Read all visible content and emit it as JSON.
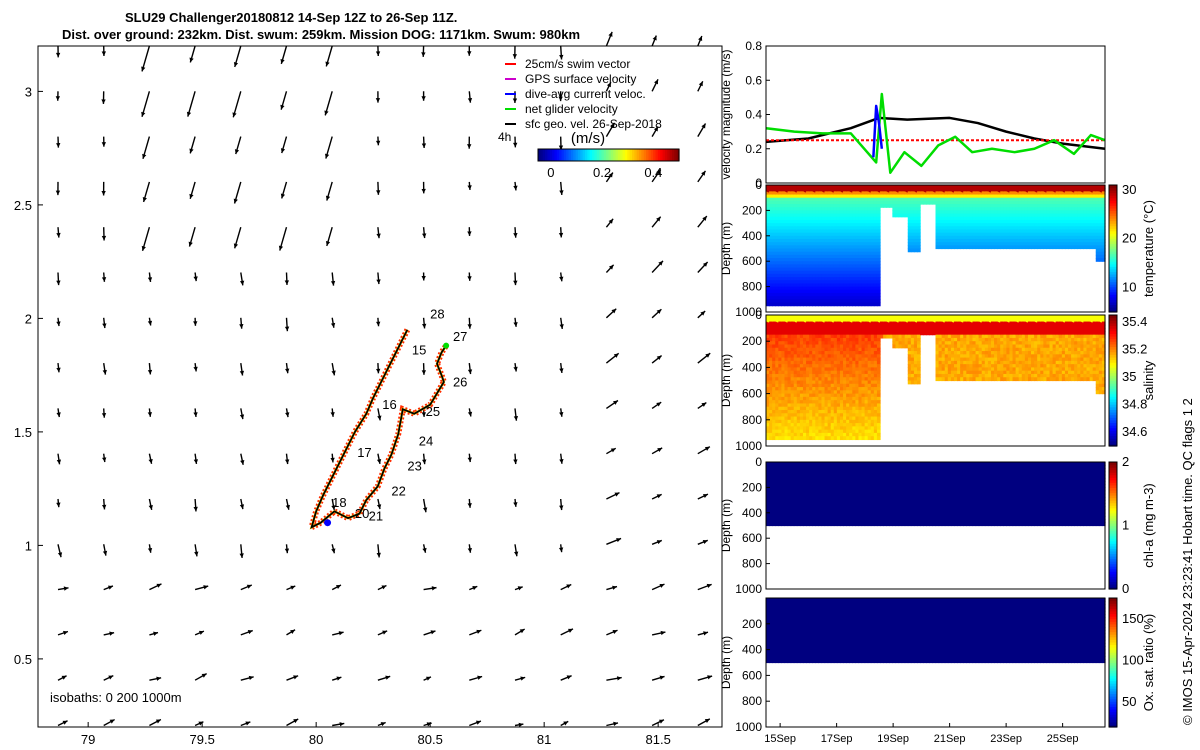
{
  "header": {
    "title_line1": "SLU29 Challenger20180812 14-Sep 12Z to 26-Sep 11Z.",
    "title_line2": "Dist. over ground: 232km. Dist. swum: 259km. Mission DOG: 1171km. Swum: 980km"
  },
  "footer_note": "© IMOS 15-Apr-2024 23:23:41 Hobart time. QC flags 1  2",
  "chart_data": [
    {
      "type": "scatter",
      "panel": "map",
      "title": "",
      "x_ticks": [
        "79",
        "79.5",
        "80",
        "80.5",
        "81",
        "81.5"
      ],
      "y_ticks": [
        "0.5",
        "1",
        "1.5",
        "2",
        "2.5",
        "3"
      ],
      "xlim": [
        78.78,
        81.78
      ],
      "ylim": [
        0.2,
        3.2
      ],
      "legend": {
        "placement": "top-right",
        "items": [
          {
            "label": "25cm/s swim vector",
            "color": "#ff0000"
          },
          {
            "label": "GPS surface velocity",
            "color": "#cc00cc"
          },
          {
            "label": "dive-avg current veloc.",
            "color": "#0000ff"
          },
          {
            "label": "net glider velocity",
            "color": "#00dd00"
          },
          {
            "label": "sfc geo. vel. 26-Sep-2018",
            "color": "#000000"
          }
        ]
      },
      "scale_arrow_label": "4h",
      "colorbar": {
        "label": "(m/s)",
        "ticks": [
          "0",
          "0.2",
          "0.4"
        ],
        "range": [
          -0.05,
          0.5
        ]
      },
      "isobaths_label": "isobaths: 0   200  1000m",
      "track": {
        "lon": [
          80.4,
          80.35,
          80.3,
          80.25,
          80.22,
          80.17,
          80.12,
          80.07,
          80.03,
          80.0,
          79.98,
          80.02,
          80.08,
          80.14,
          80.19,
          80.22,
          80.27,
          80.3,
          80.33,
          80.36,
          80.38,
          80.43,
          80.5,
          80.56,
          80.55,
          80.53,
          80.55,
          80.57
        ],
        "lat": [
          1.95,
          1.85,
          1.75,
          1.65,
          1.58,
          1.5,
          1.4,
          1.3,
          1.22,
          1.15,
          1.08,
          1.1,
          1.15,
          1.12,
          1.14,
          1.2,
          1.26,
          1.34,
          1.4,
          1.49,
          1.6,
          1.58,
          1.62,
          1.72,
          1.75,
          1.8,
          1.85,
          1.88
        ]
      },
      "day_labels": [
        {
          "text": "15",
          "lon": 80.42,
          "lat": 1.84
        },
        {
          "text": "16",
          "lon": 80.29,
          "lat": 1.6
        },
        {
          "text": "17",
          "lon": 80.18,
          "lat": 1.39
        },
        {
          "text": "18",
          "lon": 80.07,
          "lat": 1.17
        },
        {
          "text": "20",
          "lon": 80.17,
          "lat": 1.12
        },
        {
          "text": "21",
          "lon": 80.23,
          "lat": 1.11
        },
        {
          "text": "22",
          "lon": 80.33,
          "lat": 1.22
        },
        {
          "text": "23",
          "lon": 80.4,
          "lat": 1.33
        },
        {
          "text": "24",
          "lon": 80.45,
          "lat": 1.44
        },
        {
          "text": "25",
          "lon": 80.48,
          "lat": 1.57
        },
        {
          "text": "26",
          "lon": 80.6,
          "lat": 1.7
        },
        {
          "text": "27",
          "lon": 80.6,
          "lat": 1.9
        },
        {
          "text": "28",
          "lon": 80.5,
          "lat": 2.0
        }
      ]
    },
    {
      "type": "line",
      "panel": "velocity",
      "ylabel": "velocity magnitude (m/s)",
      "y_ticks": [
        "0",
        "0.2",
        "0.4",
        "0.6",
        "0.8"
      ],
      "ylim": [
        0,
        0.8
      ],
      "x_range_days": [
        14.5,
        26.5
      ],
      "series": [
        {
          "color": "#000000",
          "x": [
            14.5,
            16,
            17.5,
            18.5,
            19.5,
            21,
            22,
            23,
            24,
            25,
            26.5
          ],
          "values": [
            0.24,
            0.26,
            0.32,
            0.38,
            0.37,
            0.38,
            0.35,
            0.3,
            0.26,
            0.23,
            0.2
          ]
        },
        {
          "color": "#ff0000",
          "x": [
            14.5,
            18.3,
            18.35,
            26.5
          ],
          "values": [
            0.25,
            0.25,
            0.25,
            0.25
          ]
        },
        {
          "color": "#00dd00",
          "x": [
            14.5,
            15.5,
            16.5,
            17.5,
            18.4,
            18.6,
            18.9,
            19.4,
            20,
            20.6,
            21.2,
            21.8,
            22.5,
            23.3,
            24,
            24.7,
            25.4,
            26,
            26.5
          ],
          "values": [
            0.32,
            0.3,
            0.29,
            0.29,
            0.12,
            0.52,
            0.06,
            0.18,
            0.1,
            0.22,
            0.27,
            0.18,
            0.2,
            0.18,
            0.2,
            0.25,
            0.17,
            0.28,
            0.25
          ]
        },
        {
          "color": "#0000ff",
          "x": [
            18.3,
            18.4,
            18.5,
            18.6
          ],
          "values": [
            0.15,
            0.45,
            0.35,
            0.2
          ]
        }
      ]
    },
    {
      "type": "heatmap",
      "panel": "temperature",
      "ylabel": "Depth (m)",
      "y_ticks": [
        "0",
        "200",
        "400",
        "600",
        "800",
        "1000"
      ],
      "ylim": [
        1000,
        0
      ],
      "colorbar": {
        "label": "temperature (°C)",
        "ticks": [
          "10",
          "20",
          "30"
        ],
        "range": [
          5,
          31
        ]
      },
      "profiles": [
        {
          "start_day": 14.5,
          "end_day": 18.5,
          "max_depth": 960
        },
        {
          "start_day": 18.5,
          "end_day": 19.0,
          "max_depth": 180
        },
        {
          "start_day": 19.0,
          "end_day": 19.5,
          "max_depth": 250
        },
        {
          "start_day": 19.5,
          "end_day": 20.0,
          "max_depth": 520
        },
        {
          "start_day": 20.0,
          "end_day": 20.5,
          "max_depth": 160
        },
        {
          "start_day": 20.5,
          "end_day": 22.4,
          "max_depth": 510
        },
        {
          "start_day": 22.5,
          "end_day": 26.2,
          "max_depth": 510
        },
        {
          "start_day": 26.2,
          "end_day": 26.5,
          "max_depth": 610
        }
      ]
    },
    {
      "type": "heatmap",
      "panel": "salinity",
      "ylabel": "Depth (m)",
      "y_ticks": [
        "0",
        "200",
        "400",
        "600",
        "800",
        "1000"
      ],
      "ylim": [
        1000,
        0
      ],
      "colorbar": {
        "label": "salinity",
        "ticks": [
          "34.6",
          "34.8",
          "35",
          "35.2",
          "35.4"
        ],
        "range": [
          34.5,
          35.45
        ]
      }
    },
    {
      "type": "heatmap",
      "panel": "chl-a",
      "ylabel": "Depth (m)",
      "y_ticks": [
        "0",
        "200",
        "400",
        "600",
        "800",
        "1000"
      ],
      "ylim": [
        1000,
        0
      ],
      "colorbar": {
        "label": "chl-a (mg m-3)",
        "ticks": [
          "0",
          "1",
          "2"
        ],
        "range": [
          0,
          2
        ]
      }
    },
    {
      "type": "heatmap",
      "panel": "oxygen",
      "ylabel": "Depth (m)",
      "y_ticks": [
        "200",
        "400",
        "600",
        "800",
        "1000"
      ],
      "ylim": [
        1000,
        0
      ],
      "x_ticks": [
        "15Sep",
        "17Sep",
        "19Sep",
        "21Sep",
        "23Sep",
        "25Sep"
      ],
      "x_tick_days": [
        15,
        17,
        19,
        21,
        23,
        25
      ],
      "colorbar": {
        "label": "Ox. sat. ratio (%)",
        "ticks": [
          "50",
          "100",
          "150"
        ],
        "range": [
          20,
          175
        ]
      }
    }
  ]
}
